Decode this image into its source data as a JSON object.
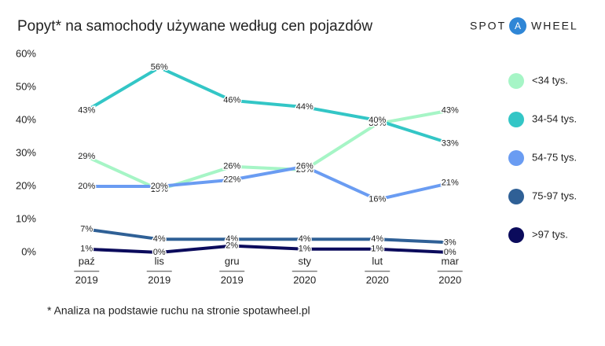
{
  "chart_data": {
    "type": "line",
    "title": "Popyt* na samochody używane według cen pojazdów",
    "logo": {
      "left": "SPOT",
      "mark": "A",
      "right": "WHEEL"
    },
    "footnote": "* Analiza na podstawie ruchu na stronie spotawheel.pl",
    "categories": [
      [
        "paź",
        "2019"
      ],
      [
        "lis",
        "2019"
      ],
      [
        "gru",
        "2019"
      ],
      [
        "sty",
        "2020"
      ],
      [
        "lut",
        "2020"
      ],
      [
        "mar",
        "2020"
      ]
    ],
    "ylim": [
      0,
      60
    ],
    "yticks": [
      {
        "value": 0,
        "label": "0%"
      },
      {
        "value": 10,
        "label": "10%"
      },
      {
        "value": 20,
        "label": "20%"
      },
      {
        "value": 30,
        "label": "30%"
      },
      {
        "value": 40,
        "label": "40%"
      },
      {
        "value": 50,
        "label": "50%"
      },
      {
        "value": 60,
        "label": "60%"
      }
    ],
    "grid": false,
    "legend": "right",
    "series": [
      {
        "name": "<34 tys.",
        "color": "#a6f5c6",
        "values": [
          29,
          19,
          26,
          25,
          39,
          43
        ],
        "value_labels": [
          "29%",
          "19%",
          "26%",
          "25%",
          "39%",
          "43%"
        ]
      },
      {
        "name": "34-54 tys.",
        "color": "#33c6c6",
        "values": [
          43,
          56,
          46,
          44,
          40,
          33
        ],
        "value_labels": [
          "43%",
          "56%",
          "46%",
          "44%",
          "40%",
          "33%"
        ]
      },
      {
        "name": "54-75 tys.",
        "color": "#6a9cf2",
        "values": [
          20,
          20,
          22,
          26,
          16,
          21
        ],
        "value_labels": [
          "20%",
          "20%",
          "22%",
          "26%",
          "16%",
          "21%"
        ]
      },
      {
        "name": "75-97 tys.",
        "color": "#2f6096",
        "values": [
          7,
          4,
          4,
          4,
          4,
          3
        ],
        "value_labels": [
          "7%",
          "4%",
          "4%",
          "4%",
          "4%",
          "3%"
        ]
      },
      {
        "name": ">97 tys.",
        "color": "#0b0b5c",
        "values": [
          1,
          0,
          2,
          1,
          1,
          0
        ],
        "value_labels": [
          "1%",
          "0%",
          "2%",
          "1%",
          "1%",
          "0%"
        ]
      }
    ]
  }
}
